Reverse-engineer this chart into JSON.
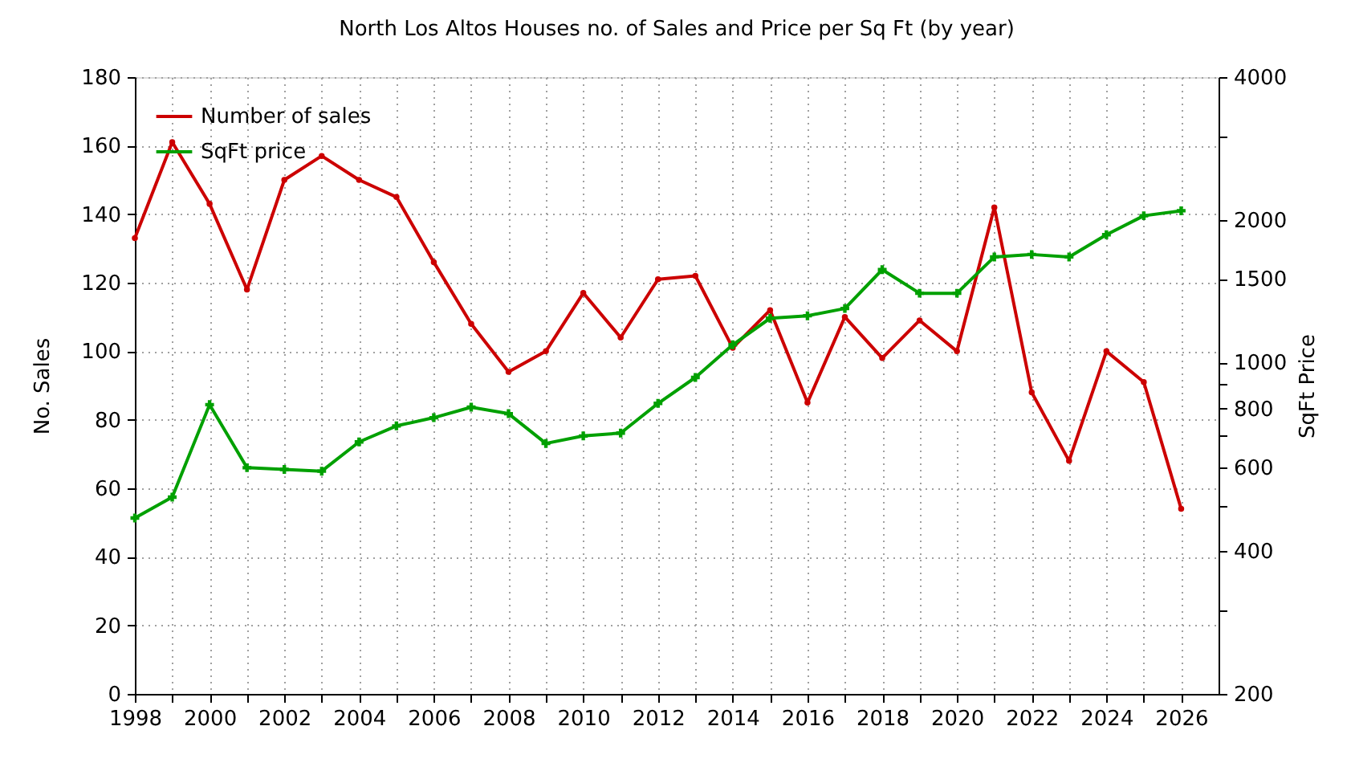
{
  "chart_data": {
    "type": "line",
    "title": "North Los Altos Houses no. of Sales and Price per Sq Ft (by year)",
    "ylabel": "No. Sales",
    "y2label": "SqFt Price",
    "x": [
      1998,
      1999,
      2000,
      2001,
      2002,
      2003,
      2004,
      2005,
      2006,
      2007,
      2008,
      2009,
      2010,
      2011,
      2012,
      2013,
      2014,
      2015,
      2016,
      2017,
      2018,
      2019,
      2020,
      2021,
      2022,
      2023,
      2024,
      2025,
      2026
    ],
    "series": [
      {
        "name": "Number of sales",
        "color": "#cc0000",
        "marker": "circle",
        "values": [
          133,
          161,
          143,
          118,
          150,
          157,
          150,
          145,
          126,
          108,
          94,
          100,
          117,
          104,
          121,
          122,
          101,
          112,
          85,
          110,
          98,
          109,
          100,
          142,
          88,
          68,
          100,
          91,
          54
        ]
      },
      {
        "name": "SqFt price",
        "color": "#00a000",
        "marker": "cross",
        "axis": "y2",
        "values": [
          470,
          520,
          815,
          600,
          595,
          590,
          680,
          735,
          765,
          805,
          780,
          675,
          700,
          710,
          820,
          930,
          1090,
          1240,
          1255,
          1300,
          1570,
          1400,
          1400,
          1670,
          1690,
          1670,
          1860,
          2040,
          2090
        ]
      }
    ],
    "xlim": [
      1998,
      2027
    ],
    "xticks": [
      1998,
      {
        "value": 1999,
        "label": null
      },
      2000,
      {
        "value": 2001,
        "label": null
      },
      2002,
      {
        "value": 2003,
        "label": null
      },
      2004,
      {
        "value": 2005,
        "label": null
      },
      2006,
      {
        "value": 2007,
        "label": null
      },
      2008,
      {
        "value": 2009,
        "label": null
      },
      2010,
      {
        "value": 2011,
        "label": null
      },
      2012,
      {
        "value": 2013,
        "label": null
      },
      2014,
      {
        "value": 2015,
        "label": null
      },
      2016,
      {
        "value": 2017,
        "label": null
      },
      2018,
      {
        "value": 2019,
        "label": null
      },
      2020,
      {
        "value": 2021,
        "label": null
      },
      2022,
      {
        "value": 2023,
        "label": null
      },
      2024,
      {
        "value": 2025,
        "label": null
      },
      2026
    ],
    "ylim": [
      0,
      180
    ],
    "yticks": [
      0,
      20,
      40,
      60,
      80,
      100,
      120,
      140,
      160,
      180
    ],
    "y2lim": [
      200,
      4000
    ],
    "y2ticks": [
      200,
      {
        "value": 300,
        "label": null
      },
      400,
      {
        "value": 500,
        "label": null
      },
      600,
      {
        "value": 700,
        "label": null
      },
      800,
      {
        "value": 900,
        "label": null
      },
      1000,
      1500,
      2000,
      {
        "value": 3000,
        "label": null
      },
      4000
    ],
    "log": "y2",
    "grid": true,
    "legend": "top left",
    "line_style": "solid"
  }
}
